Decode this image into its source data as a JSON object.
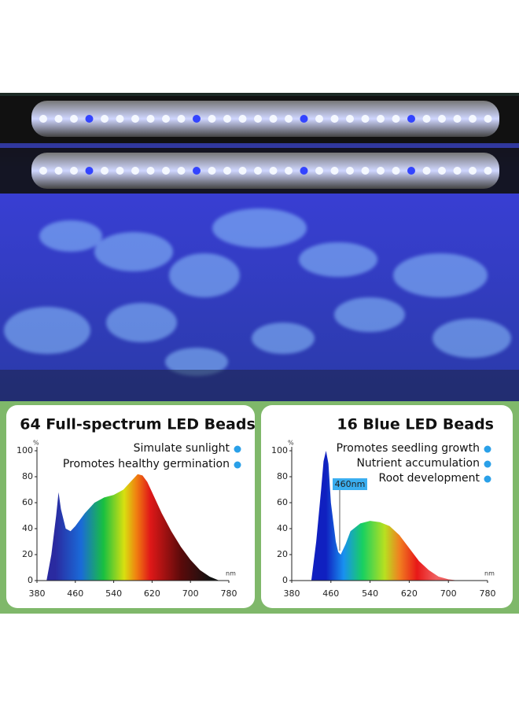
{
  "chart_data": [
    {
      "type": "area",
      "title": "64 Full-spectrum LED Beads",
      "annotations": [
        "Simulate sunlight",
        "Promotes healthy germination"
      ],
      "x_label": "nm",
      "y_label": "%",
      "x": [
        400,
        410,
        420,
        425,
        430,
        440,
        450,
        460,
        480,
        500,
        520,
        540,
        560,
        580,
        590,
        600,
        610,
        620,
        640,
        660,
        680,
        700,
        720,
        740,
        760
      ],
      "values": [
        0,
        20,
        50,
        68,
        55,
        40,
        38,
        42,
        52,
        60,
        64,
        66,
        70,
        78,
        82,
        81,
        76,
        68,
        52,
        38,
        26,
        16,
        8,
        3,
        0
      ],
      "xlim": [
        380,
        780
      ],
      "xticks": [
        380,
        460,
        540,
        620,
        700,
        780
      ],
      "ylim": [
        0,
        100
      ],
      "yticks": [
        0,
        20,
        40,
        60,
        80,
        100
      ]
    },
    {
      "type": "area",
      "title": "16 Blue LED Beads",
      "annotations": [
        "Promotes seedling growth",
        "Nutrient accumulation",
        "Root development",
        "460nm"
      ],
      "x_label": "nm",
      "y_label": "%",
      "x": [
        420,
        430,
        440,
        445,
        450,
        455,
        460,
        470,
        475,
        480,
        490,
        500,
        520,
        540,
        560,
        580,
        600,
        620,
        640,
        660,
        680,
        700,
        720
      ],
      "values": [
        0,
        30,
        70,
        92,
        100,
        90,
        60,
        30,
        22,
        20,
        28,
        38,
        44,
        46,
        45,
        42,
        35,
        25,
        15,
        8,
        3,
        1,
        0
      ],
      "xlim": [
        380,
        780
      ],
      "xticks": [
        380,
        460,
        540,
        620,
        700,
        780
      ],
      "ylim": [
        0,
        100
      ],
      "yticks": [
        0,
        20,
        40,
        60,
        80,
        100
      ]
    }
  ]
}
